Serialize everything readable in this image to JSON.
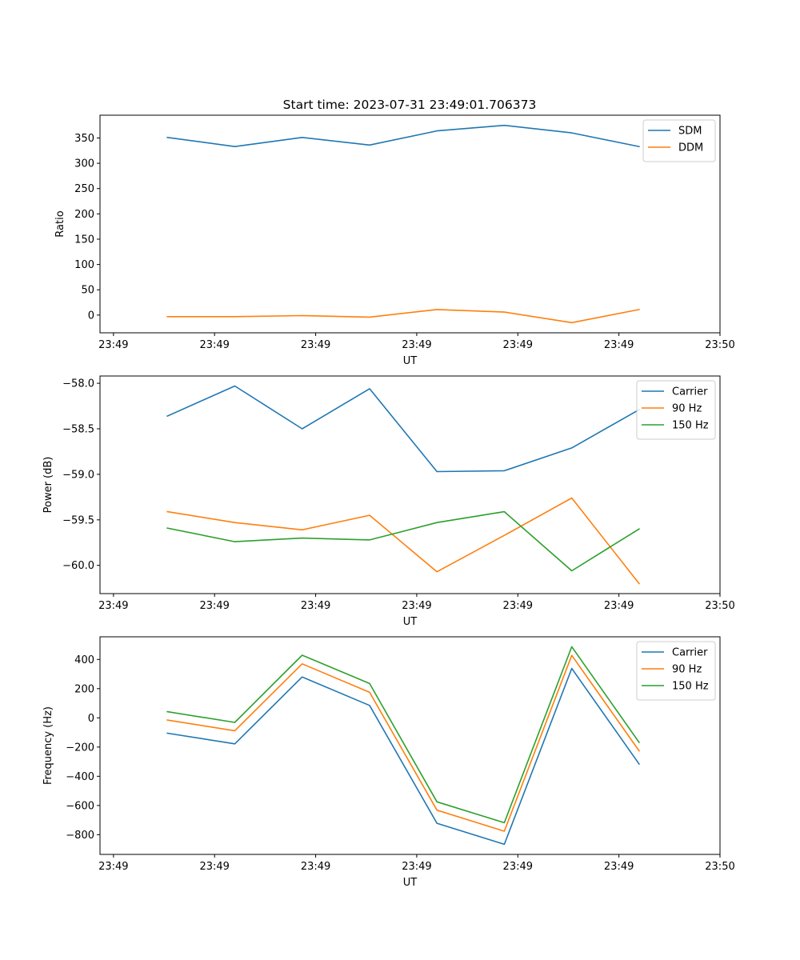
{
  "figure_title": "Start time: 2023-07-31 23:49:01.706373",
  "colors": {
    "blue": "#1f77b4",
    "orange": "#ff7f0e",
    "green": "#2ca02c"
  },
  "chart_data": [
    {
      "type": "line",
      "title": "Start time: 2023-07-31 23:49:01.706373",
      "xlabel": "UT",
      "ylabel": "Ratio",
      "x": [
        1,
        2,
        3,
        4,
        5,
        6,
        7,
        8
      ],
      "xlim": [
        0,
        9.2
      ],
      "xticks": [
        0.2,
        1.7,
        3.2,
        4.7,
        6.2,
        7.7,
        9.2
      ],
      "xtick_labels": [
        "23:49",
        "23:49",
        "23:49",
        "23:49",
        "23:49",
        "23:49",
        "23:50"
      ],
      "ylim": [
        -35,
        395
      ],
      "yticks": [
        0,
        50,
        100,
        150,
        200,
        250,
        300,
        350
      ],
      "ytick_labels": [
        "0",
        "50",
        "100",
        "150",
        "200",
        "250",
        "300",
        "350"
      ],
      "legend_position": "top-right",
      "series": [
        {
          "name": "SDM",
          "color": "#1f77b4",
          "values": [
            351,
            333,
            351,
            336,
            364,
            375,
            360,
            333
          ]
        },
        {
          "name": "DDM",
          "color": "#ff7f0e",
          "values": [
            -3,
            -3,
            -1,
            -4,
            11,
            6,
            -15,
            11
          ]
        }
      ]
    },
    {
      "type": "line",
      "title": "",
      "xlabel": "UT",
      "ylabel": "Power (dB)",
      "x": [
        1,
        2,
        3,
        4,
        5,
        6,
        7,
        8
      ],
      "xlim": [
        0,
        9.2
      ],
      "xticks": [
        0.2,
        1.7,
        3.2,
        4.7,
        6.2,
        7.7,
        9.2
      ],
      "xtick_labels": [
        "23:49",
        "23:49",
        "23:49",
        "23:49",
        "23:49",
        "23:49",
        "23:50"
      ],
      "ylim": [
        -60.31,
        -57.92
      ],
      "yticks": [
        -60.0,
        -59.5,
        -59.0,
        -58.5,
        -58.0
      ],
      "ytick_labels": [
        "−60.0",
        "−59.5",
        "−59.0",
        "−58.5",
        "−58.0"
      ],
      "legend_position": "top-right",
      "series": [
        {
          "name": "Carrier",
          "color": "#1f77b4",
          "values": [
            -58.36,
            -58.03,
            -58.5,
            -58.06,
            -58.97,
            -58.96,
            -58.71,
            -58.29
          ]
        },
        {
          "name": "90 Hz",
          "color": "#ff7f0e",
          "values": [
            -59.41,
            -59.53,
            -59.61,
            -59.45,
            -60.07,
            -59.67,
            -59.26,
            -60.2
          ]
        },
        {
          "name": "150 Hz",
          "color": "#2ca02c",
          "values": [
            -59.59,
            -59.74,
            -59.7,
            -59.72,
            -59.53,
            -59.41,
            -60.06,
            -59.6
          ]
        }
      ]
    },
    {
      "type": "line",
      "title": "",
      "xlabel": "UT",
      "ylabel": "Frequency (Hz)",
      "x": [
        1,
        2,
        3,
        4,
        5,
        6,
        7,
        8
      ],
      "xlim": [
        0,
        9.2
      ],
      "xticks": [
        0.2,
        1.7,
        3.2,
        4.7,
        6.2,
        7.7,
        9.2
      ],
      "xtick_labels": [
        "23:49",
        "23:49",
        "23:49",
        "23:49",
        "23:49",
        "23:49",
        "23:50"
      ],
      "ylim": [
        -935,
        555
      ],
      "yticks": [
        -800,
        -600,
        -400,
        -200,
        0,
        200,
        400
      ],
      "ytick_labels": [
        "−800",
        "−600",
        "−400",
        "−200",
        "0",
        "200",
        "400"
      ],
      "legend_position": "top-right",
      "series": [
        {
          "name": "Carrier",
          "color": "#1f77b4",
          "values": [
            -105,
            -178,
            280,
            85,
            -722,
            -866,
            338,
            -316
          ]
        },
        {
          "name": "90 Hz",
          "color": "#ff7f0e",
          "values": [
            -15,
            -88,
            370,
            175,
            -632,
            -776,
            428,
            -226
          ]
        },
        {
          "name": "150 Hz",
          "color": "#2ca02c",
          "values": [
            42,
            -31,
            429,
            235,
            -575,
            -718,
            487,
            -168
          ]
        }
      ]
    }
  ]
}
